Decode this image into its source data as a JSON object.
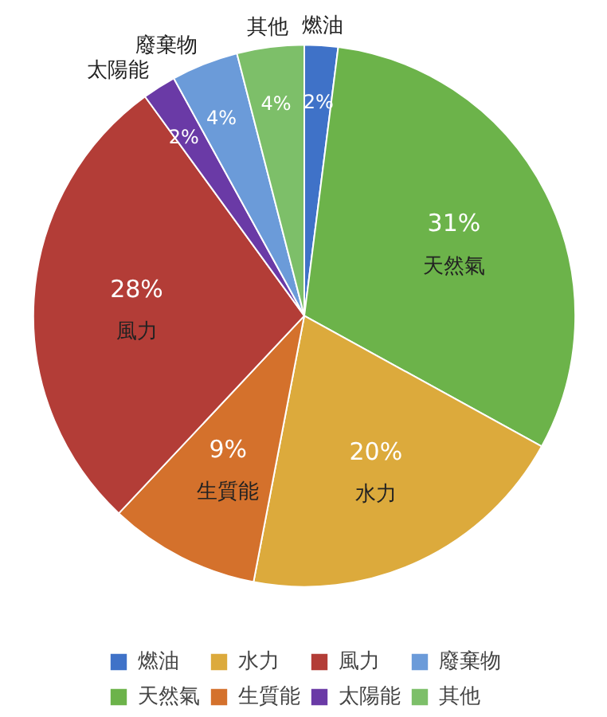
{
  "chart_data": {
    "type": "pie",
    "categories": [
      "燃油",
      "天然氣",
      "水力",
      "生質能",
      "風力",
      "太陽能",
      "廢棄物",
      "其他"
    ],
    "values": [
      2,
      31,
      20,
      9,
      28,
      2,
      4,
      4
    ],
    "value_labels": [
      "2%",
      "31%",
      "20%",
      "9%",
      "28%",
      "2%",
      "4%",
      "4%"
    ],
    "colors": [
      "#3f72c8",
      "#6cb34a",
      "#dcaa3c",
      "#d4712c",
      "#b33d37",
      "#6a3aa6",
      "#6b9bd9",
      "#7dbf69"
    ],
    "legend": "bottom"
  }
}
